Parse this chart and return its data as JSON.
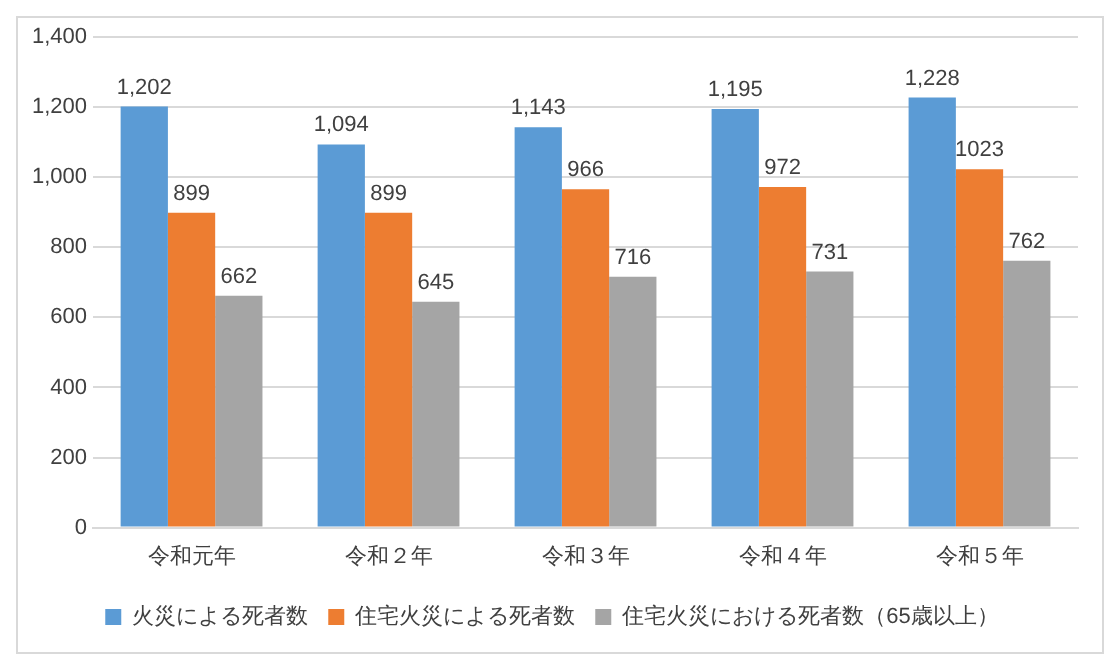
{
  "chart_data": {
    "type": "bar",
    "categories": [
      "令和元年",
      "令和２年",
      "令和３年",
      "令和４年",
      "令和５年"
    ],
    "series": [
      {
        "name": "火災による死者数",
        "color": "#5b9bd5",
        "values": [
          1202,
          1094,
          1143,
          1195,
          1228
        ],
        "value_labels": [
          "1,202",
          "1,094",
          "1,143",
          "1,195",
          "1,228"
        ]
      },
      {
        "name": "住宅火災による死者数",
        "color": "#ed7d31",
        "values": [
          899,
          899,
          966,
          972,
          1023
        ],
        "value_labels": [
          "899",
          "899",
          "966",
          "972",
          "1023"
        ]
      },
      {
        "name": "住宅火災における死者数（65歳以上）",
        "color": "#a5a5a5",
        "values": [
          662,
          645,
          716,
          731,
          762
        ],
        "value_labels": [
          "662",
          "645",
          "716",
          "731",
          "762"
        ]
      }
    ],
    "ylim": [
      0,
      1400
    ],
    "yticks": [
      0,
      {
        "value": 200,
        "label": "200"
      },
      {
        "value": 400,
        "label": "400"
      },
      {
        "value": 600,
        "label": "600"
      },
      {
        "value": 800,
        "label": "800"
      },
      {
        "value": 1000,
        "label": "1,000"
      },
      {
        "value": 1200,
        "label": "1,200"
      },
      {
        "value": 1400,
        "label": "1,400"
      }
    ],
    "grid": "y",
    "legend": "bottom"
  }
}
